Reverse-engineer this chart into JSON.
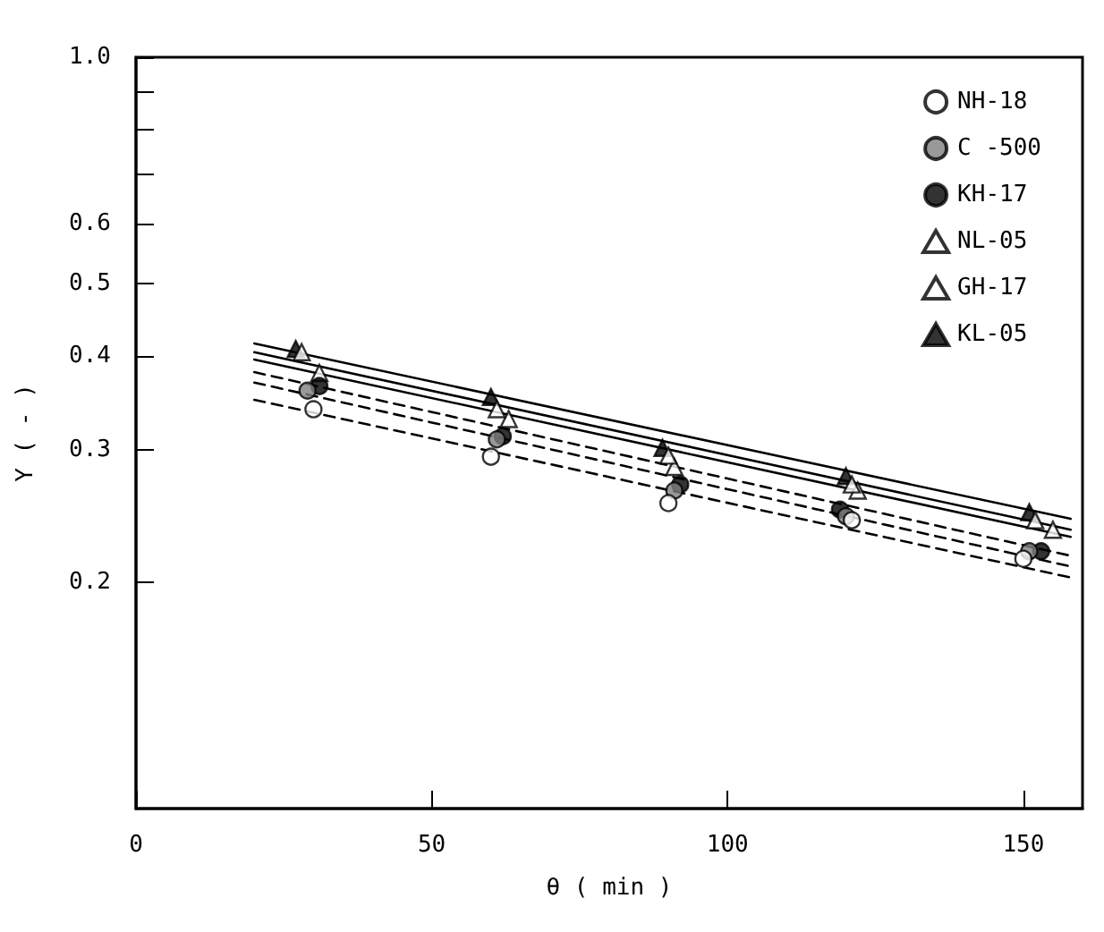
{
  "chart_data": {
    "type": "scatter",
    "xlabel": "θ ( min )",
    "ylabel": "Y ( - )",
    "log": "y",
    "grid": false,
    "legend": "top right",
    "xlim": [
      0,
      160
    ],
    "xticks": [
      0,
      50,
      100,
      150
    ],
    "ylim": [
      0.1,
      1.0
    ],
    "yticks": [
      0.2,
      0.3,
      0.4,
      0.5,
      0.6,
      {
        "value": 0.7,
        "label": null
      },
      {
        "value": 0.8,
        "label": null
      },
      {
        "value": 0.9,
        "label": null
      },
      {
        "value": 1.0,
        "label": "1.0"
      }
    ],
    "series": [
      {
        "name": "NH-18",
        "marker": "circle",
        "color": "#ffffff",
        "x": [
          30,
          60,
          90,
          121,
          150
        ],
        "values": [
          0.34,
          0.294,
          0.255,
          0.242,
          0.215
        ]
      },
      {
        "name": "C -500",
        "marker": "circle",
        "color": "#808080",
        "x": [
          29,
          61,
          91,
          120,
          151
        ],
        "values": [
          0.36,
          0.31,
          0.265,
          0.245,
          0.22
        ]
      },
      {
        "name": "KH-17",
        "marker": "circle",
        "color": "#000000",
        "x": [
          31,
          62,
          92,
          119,
          153
        ],
        "values": [
          0.365,
          0.313,
          0.27,
          0.25,
          0.22
        ]
      },
      {
        "name": "NL-05",
        "marker": "triangle",
        "color": "#ffffff",
        "x": [
          28,
          61,
          90,
          121,
          152
        ],
        "values": [
          0.405,
          0.34,
          0.295,
          0.27,
          0.242
        ]
      },
      {
        "name": "GH-17",
        "marker": "triangle",
        "color": "#ffffff",
        "x": [
          31,
          63,
          91,
          122,
          155
        ],
        "values": [
          0.38,
          0.33,
          0.285,
          0.265,
          0.235
        ]
      },
      {
        "name": "KL-05",
        "marker": "triangle",
        "color": "#000000",
        "x": [
          27,
          60,
          89,
          120,
          151
        ],
        "values": [
          0.409,
          0.353,
          0.302,
          0.277,
          0.248
        ]
      },
      {
        "type": "line",
        "line_style": "dashed",
        "marker": "none",
        "color": "#000000",
        "x": [
          20,
          158
        ],
        "values": [
          0.35,
          0.203
        ]
      },
      {
        "type": "line",
        "line_style": "dashed",
        "marker": "none",
        "color": "#000000",
        "x": [
          20,
          158
        ],
        "values": [
          0.369,
          0.21
        ]
      },
      {
        "type": "line",
        "line_style": "dashed",
        "marker": "none",
        "color": "#000000",
        "x": [
          20,
          158
        ],
        "values": [
          0.381,
          0.217
        ]
      },
      {
        "type": "line",
        "line_style": "solid",
        "marker": "none",
        "color": "#000000",
        "x": [
          20,
          158
        ],
        "values": [
          0.396,
          0.23
        ]
      },
      {
        "type": "line",
        "line_style": "solid",
        "marker": "none",
        "color": "#000000",
        "x": [
          20,
          158
        ],
        "values": [
          0.405,
          0.235
        ]
      },
      {
        "type": "line",
        "line_style": "solid",
        "marker": "none",
        "color": "#000000",
        "x": [
          20,
          158
        ],
        "values": [
          0.416,
          0.243
        ]
      }
    ]
  }
}
